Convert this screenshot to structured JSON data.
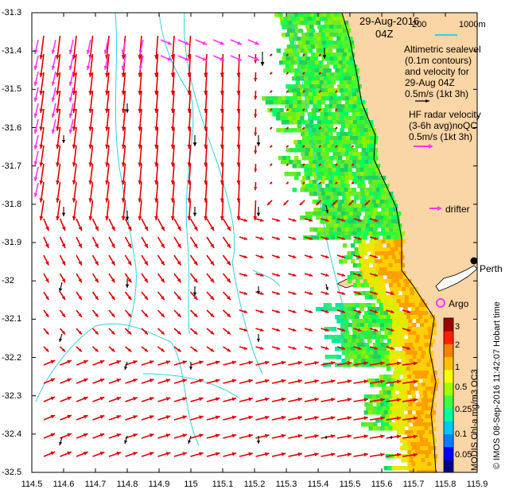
{
  "title": {
    "date": "29-Aug-2016",
    "time": "04Z"
  },
  "scale": {
    "left": "200",
    "right": "1000m"
  },
  "legend": {
    "altimetric_lines": [
      "Altimetric sealevel",
      "(0.1m contours)",
      "and velocity for",
      "29-Aug 04Z",
      "0.5m/s (1kt 3h)"
    ],
    "hf_lines": [
      "HF radar velocity",
      "(3-6h avg)noQC",
      "0.5m/s (1kt 3h)"
    ],
    "drifter": "drifter",
    "argo": "Argo",
    "city": "Perth"
  },
  "axes": {
    "x_ticks": [
      "114.5",
      "114.6",
      "114.7",
      "114.8",
      "114.9",
      "115",
      "115.1",
      "115.2",
      "115.3",
      "115.4",
      "115.5",
      "115.6",
      "115.7",
      "115.8",
      "115.9"
    ],
    "y_ticks": [
      "-31.3",
      "-31.4",
      "-31.5",
      "-31.6",
      "-31.7",
      "-31.8",
      "-31.9",
      "-32",
      "-32.1",
      "-32.2",
      "-32.3",
      "-32.4",
      "-32.5"
    ],
    "lon_range": [
      114.5,
      115.9
    ],
    "lat_range": [
      -32.5,
      -31.3
    ]
  },
  "colorbar": {
    "label": "MODIS Chl-a mg/m3 OC3",
    "ticks": [
      "3",
      "2",
      "1",
      "0.5",
      "0.25",
      "0.1",
      "0.05"
    ],
    "colors": [
      "#00008b",
      "#0000ff",
      "#0080ff",
      "#00c8ff",
      "#00ffa0",
      "#40ff40",
      "#a0ff00",
      "#ffff00",
      "#ffc000",
      "#ff8000",
      "#ff2000",
      "#a00000"
    ]
  },
  "credit": "© IMOS 08-Sep-2016 11:42:07 Hobart time",
  "colors": {
    "land": "#fad5a5",
    "vector": "#e00000",
    "hf": "#ff33ff",
    "contour": "#33d0e0"
  }
}
